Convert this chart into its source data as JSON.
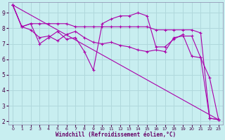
{
  "xlabel": "Windchill (Refroidissement éolien,°C)",
  "bg_color": "#c8eef0",
  "grid_color": "#b0d8dc",
  "line_color": "#aa00aa",
  "xlim": [
    -0.5,
    23.5
  ],
  "ylim": [
    1.8,
    9.7
  ],
  "xticks": [
    0,
    1,
    2,
    3,
    4,
    5,
    6,
    7,
    8,
    9,
    10,
    11,
    12,
    13,
    14,
    15,
    16,
    17,
    18,
    19,
    20,
    21,
    22,
    23
  ],
  "yticks": [
    2,
    3,
    4,
    5,
    6,
    7,
    8,
    9
  ],
  "series": [
    {
      "x": [
        0,
        1,
        2,
        3,
        4,
        5,
        6,
        7,
        8,
        9,
        10,
        11,
        12,
        13,
        14,
        15,
        16,
        17,
        18,
        19,
        20,
        21,
        22,
        23
      ],
      "y": [
        9.5,
        8.1,
        8.3,
        7.0,
        7.4,
        7.8,
        7.3,
        7.4,
        6.5,
        5.3,
        8.3,
        8.6,
        8.8,
        8.8,
        9.0,
        8.8,
        6.8,
        6.8,
        7.3,
        7.6,
        6.2,
        6.1,
        4.8,
        2.1
      ]
    },
    {
      "x": [
        0,
        1,
        2,
        3,
        4,
        5,
        6,
        7,
        8,
        9,
        10,
        11,
        12,
        13,
        14,
        15,
        16,
        17,
        18,
        19,
        20,
        21,
        22,
        23
      ],
      "y": [
        9.5,
        8.1,
        8.3,
        8.3,
        8.3,
        8.3,
        8.3,
        8.1,
        8.1,
        8.1,
        8.1,
        8.1,
        8.1,
        8.1,
        8.1,
        8.1,
        7.9,
        7.9,
        7.9,
        7.9,
        7.9,
        7.7,
        2.2,
        2.1
      ]
    },
    {
      "x": [
        0,
        23
      ],
      "y": [
        9.5,
        2.1
      ]
    },
    {
      "comment": "series around 7-7.5",
      "x": [
        0,
        1,
        2,
        3,
        4,
        5,
        6,
        7,
        8,
        9,
        10,
        11,
        12,
        13,
        14,
        15,
        16,
        17,
        18,
        19,
        20,
        21,
        22,
        23
      ],
      "y": [
        9.5,
        8.1,
        7.9,
        7.4,
        7.5,
        7.2,
        7.6,
        7.8,
        7.4,
        7.1,
        7.0,
        7.1,
        6.9,
        6.8,
        6.6,
        6.5,
        6.6,
        6.5,
        7.4,
        7.5,
        7.5,
        6.1,
        2.2,
        2.1
      ]
    }
  ]
}
